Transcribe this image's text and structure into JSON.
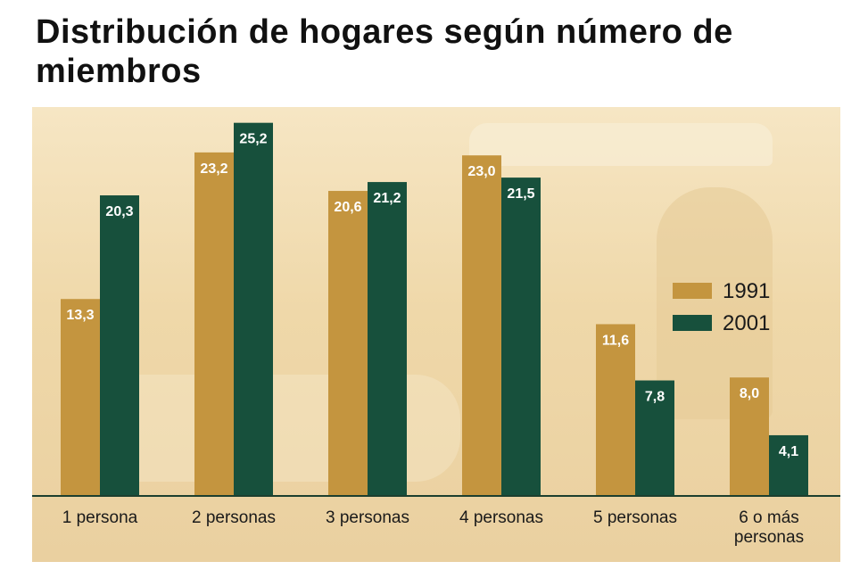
{
  "title": "Distribución de hogares según número de miembros",
  "colors": {
    "series_1991": "#c4953f",
    "series_2001": "#17503c",
    "axis": "#1c3f2e",
    "label": "#ffffff"
  },
  "chart_data": {
    "type": "bar",
    "title": "Distribución de hogares según número de miembros",
    "xlabel": "",
    "ylabel": "",
    "ylim": [
      0,
      26
    ],
    "grid": false,
    "legend": "right",
    "categories": [
      "1 persona",
      "2 personas",
      "3 personas",
      "4 personas",
      "5 personas",
      "6 o más personas"
    ],
    "series": [
      {
        "name": "1991",
        "values": [
          13.3,
          23.2,
          20.6,
          23.0,
          11.6,
          8.0
        ],
        "labels": [
          "13,3",
          "23,2",
          "20,6",
          "23,0",
          "11,6",
          "8,0"
        ]
      },
      {
        "name": "2001",
        "values": [
          20.3,
          25.2,
          21.2,
          21.5,
          7.8,
          4.1
        ],
        "labels": [
          "20,3",
          "25,2",
          "21,2",
          "21,5",
          "7,8",
          "4,1"
        ]
      }
    ]
  }
}
